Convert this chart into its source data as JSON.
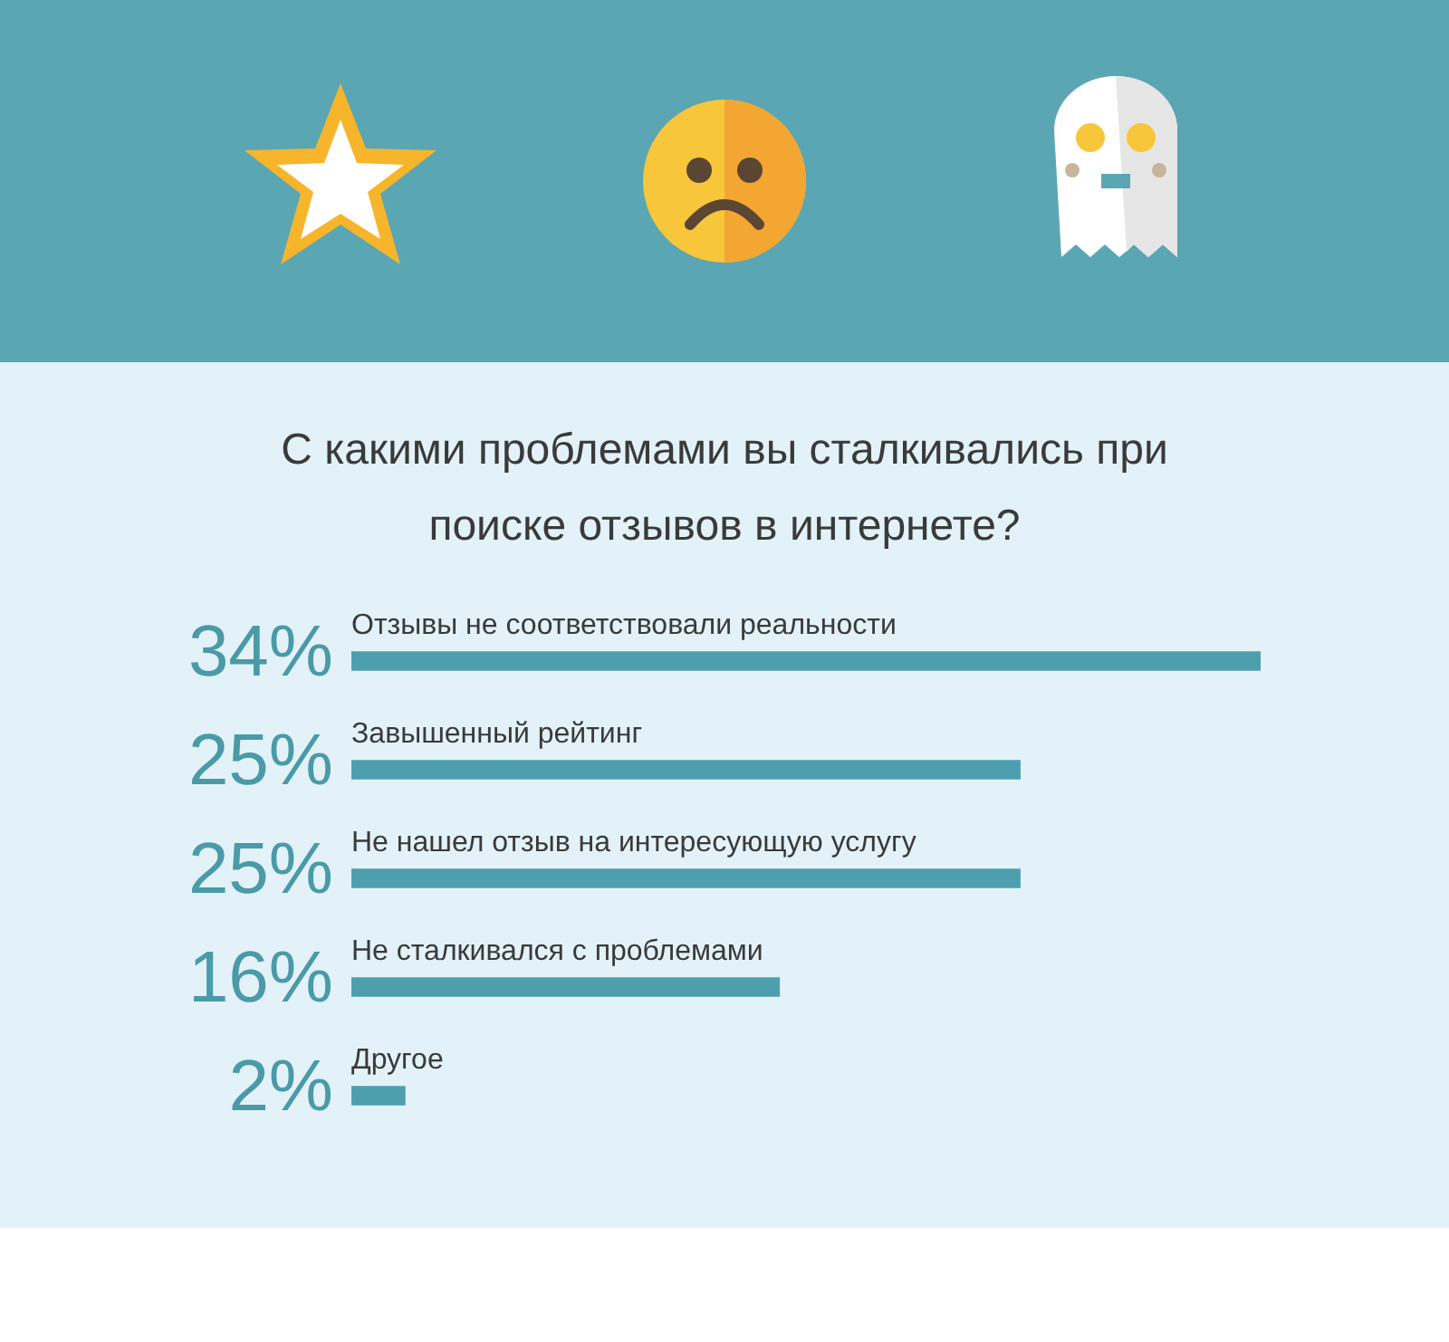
{
  "chart_data": {
    "type": "bar",
    "orientation": "horizontal",
    "title": "С какими проблемами вы сталкивались при поиске отзывов в интернете?",
    "categories": [
      "Отзывы не соответствовали реальности",
      "Завышенный рейтинг",
      "Не нашел отзыв на интересующую услугу",
      "Не сталкивался с проблемами",
      "Другое"
    ],
    "values": [
      34,
      25,
      25,
      16,
      2
    ],
    "value_labels": [
      "34%",
      "25%",
      "25%",
      "16%",
      "2%"
    ],
    "color": "#4e9fae"
  }
}
